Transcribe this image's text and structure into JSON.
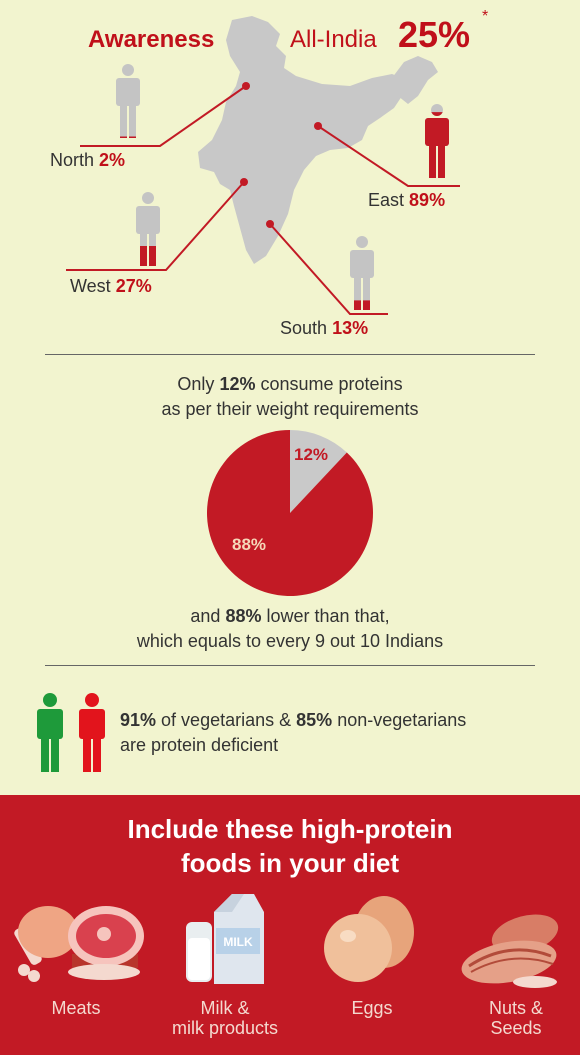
{
  "awareness": {
    "title": "Awareness",
    "all_india_label": "All-India",
    "all_india_value": "25%",
    "footnote_mark": "*",
    "regions": [
      {
        "name": "North",
        "value": "2%",
        "level": 0.02
      },
      {
        "name": "East",
        "value": "89%",
        "level": 0.89
      },
      {
        "name": "West",
        "value": "27%",
        "level": 0.27
      },
      {
        "name": "South",
        "value": "13%",
        "level": 0.13
      }
    ]
  },
  "consumption": {
    "line1_pre": "Only",
    "line1_value": "12%",
    "line1_post": "consume proteins",
    "line2": "as per their weight requirements",
    "pie": {
      "slices": [
        {
          "label": "12%",
          "value": 12,
          "color": "#c9c9c9"
        },
        {
          "label": "88%",
          "value": 88,
          "color": "#c21a25"
        }
      ]
    },
    "after_pre": "and",
    "after_value": "88%",
    "after_post": "lower than that,",
    "after_line2": "which equals to every 9 out 10 Indians"
  },
  "deficiency": {
    "veg_value": "91%",
    "line1_mid": "of vegetarians &",
    "nonveg_value": "85%",
    "line1_post": "non-vegetarians",
    "line2": "are protein deficient"
  },
  "foods": {
    "heading_line1": "Include these high-protein",
    "heading_line2": "foods in your diet",
    "items": [
      {
        "label_line1": "Meats",
        "label_line2": "",
        "icon": "meat-icon"
      },
      {
        "label_line1": "Milk &",
        "label_line2": "milk products",
        "icon": "milk-icon",
        "carton_text": "MILK"
      },
      {
        "label_line1": "Eggs",
        "label_line2": "",
        "icon": "eggs-icon"
      },
      {
        "label_line1": "Nuts &",
        "label_line2": "Seeds",
        "icon": "nuts-icon"
      }
    ]
  },
  "colors": {
    "accent": "#c21a25",
    "grey_figure": "#c4c4c4",
    "green_figure": "#1e9a3a",
    "red_figure": "#e2141c",
    "background": "#f2f4cf"
  }
}
